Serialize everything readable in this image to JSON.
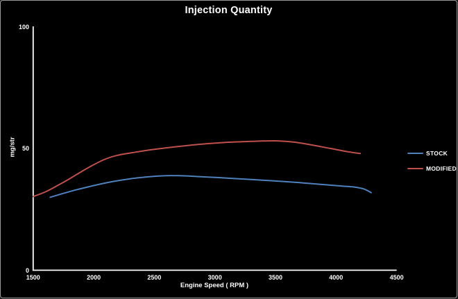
{
  "window": {
    "background": "#000000",
    "border_color": "#9a9a9a",
    "text_color": "#ffffff"
  },
  "chart_data": {
    "type": "line",
    "title": "Injection Quantity",
    "xlabel": "Engine Speed ( RPM )",
    "ylabel": "mg/str",
    "xlim": [
      1500,
      4500
    ],
    "ylim": [
      0,
      100
    ],
    "x_ticks": [
      1500,
      2000,
      2500,
      3000,
      3500,
      4000,
      4500
    ],
    "y_ticks": [
      0,
      50,
      100
    ],
    "grid": false,
    "legend_position": "right",
    "axis_color": "#ffffff",
    "series": [
      {
        "name": "STOCK",
        "color": "#4f81bd",
        "points": [
          [
            1640,
            30.0
          ],
          [
            1750,
            31.6
          ],
          [
            1850,
            33.0
          ],
          [
            2000,
            34.8
          ],
          [
            2150,
            36.4
          ],
          [
            2300,
            37.6
          ],
          [
            2450,
            38.4
          ],
          [
            2600,
            38.9
          ],
          [
            2750,
            38.8
          ],
          [
            2900,
            38.4
          ],
          [
            3100,
            37.9
          ],
          [
            3300,
            37.3
          ],
          [
            3500,
            36.7
          ],
          [
            3700,
            36.0
          ],
          [
            3900,
            35.2
          ],
          [
            4050,
            34.6
          ],
          [
            4150,
            34.2
          ],
          [
            4230,
            33.4
          ],
          [
            4290,
            31.9
          ]
        ]
      },
      {
        "name": "MODIFIED",
        "color": "#bf504d",
        "points": [
          [
            1500,
            30.3
          ],
          [
            1600,
            32.2
          ],
          [
            1700,
            34.8
          ],
          [
            1800,
            37.6
          ],
          [
            1900,
            40.6
          ],
          [
            2000,
            43.4
          ],
          [
            2100,
            45.8
          ],
          [
            2200,
            47.3
          ],
          [
            2350,
            48.6
          ],
          [
            2500,
            49.7
          ],
          [
            2700,
            50.9
          ],
          [
            2900,
            51.9
          ],
          [
            3100,
            52.6
          ],
          [
            3300,
            53.0
          ],
          [
            3500,
            53.2
          ],
          [
            3650,
            52.7
          ],
          [
            3800,
            51.5
          ],
          [
            3950,
            50.1
          ],
          [
            4100,
            48.7
          ],
          [
            4200,
            48.0
          ]
        ]
      }
    ]
  },
  "legend": {
    "stock_label": "STOCK",
    "modified_label": "MODIFIED"
  }
}
